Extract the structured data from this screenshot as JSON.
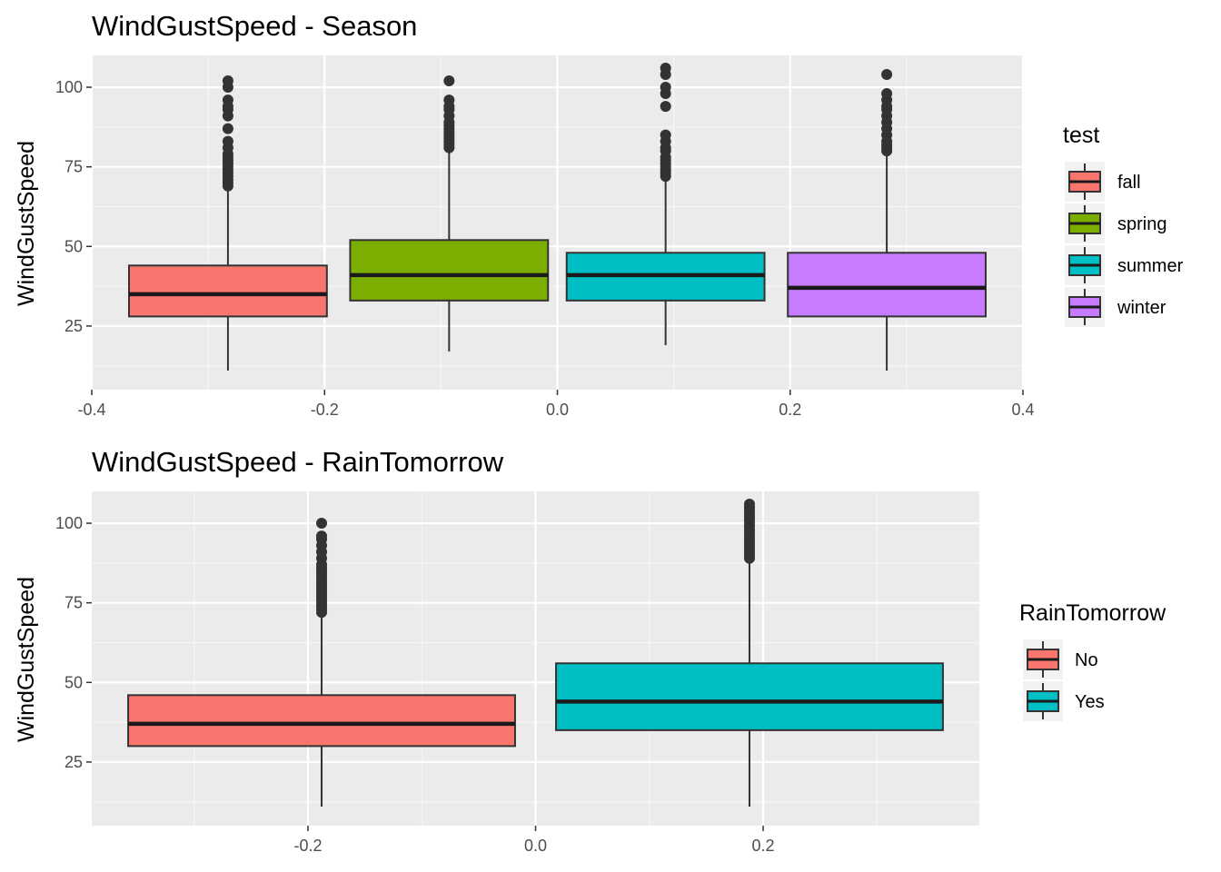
{
  "chart_data": [
    {
      "type": "boxplot",
      "title": "WindGustSpeed - Season",
      "xlabel": "",
      "ylabel": "WindGustSpeed",
      "xlim": [
        -0.4,
        0.4
      ],
      "ylim": [
        5,
        110
      ],
      "x_ticks": [
        -0.4,
        -0.2,
        0.0,
        0.2,
        0.4
      ],
      "x_tick_labels": [
        "-0.4",
        "-0.2",
        "0.0",
        "0.2",
        "0.4"
      ],
      "y_ticks": [
        25,
        50,
        75,
        100
      ],
      "y_tick_labels": [
        "25",
        "50",
        "75",
        "100"
      ],
      "legend": {
        "title": "test",
        "position": "right"
      },
      "series": [
        {
          "name": "fall",
          "color": "#F8766D",
          "x_range": [
            -0.368,
            -0.198
          ],
          "whisker_low": 11,
          "q1": 28,
          "median": 35,
          "q3": 44,
          "whisker_high": 68,
          "outliers": [
            69,
            70,
            71,
            72,
            73,
            74,
            75,
            76,
            77,
            78,
            79,
            81,
            83,
            87,
            91,
            93,
            94,
            96,
            100,
            102
          ]
        },
        {
          "name": "spring",
          "color": "#7CAE00",
          "x_range": [
            -0.178,
            -0.008
          ],
          "whisker_low": 17,
          "q1": 33,
          "median": 41,
          "q3": 52,
          "whisker_high": 80,
          "outliers": [
            81,
            82,
            83,
            84,
            85,
            86,
            87,
            88,
            89,
            91,
            93,
            94,
            96,
            102
          ]
        },
        {
          "name": "summer",
          "color": "#00BFC4",
          "x_range": [
            0.008,
            0.178
          ],
          "whisker_low": 19,
          "q1": 33,
          "median": 41,
          "q3": 48,
          "whisker_high": 71,
          "outliers": [
            72,
            73,
            74,
            75,
            76,
            77,
            78,
            80,
            81,
            83,
            85,
            94,
            98,
            100,
            104,
            106
          ]
        },
        {
          "name": "winter",
          "color": "#C77CFF",
          "x_range": [
            0.198,
            0.368
          ],
          "whisker_low": 11,
          "q1": 28,
          "median": 37,
          "q3": 48,
          "whisker_high": 79,
          "outliers": [
            80,
            81,
            82,
            83,
            85,
            87,
            89,
            91,
            93,
            94,
            96,
            98,
            104
          ]
        }
      ]
    },
    {
      "type": "boxplot",
      "title": "WindGustSpeed - RainTomorrow",
      "xlabel": "",
      "ylabel": "WindGustSpeed",
      "xlim": [
        -0.39,
        0.39
      ],
      "ylim": [
        5,
        110
      ],
      "x_ticks": [
        -0.2,
        0.0,
        0.2
      ],
      "x_tick_labels": [
        "-0.2",
        "0.0",
        "0.2"
      ],
      "y_ticks": [
        25,
        50,
        75,
        100
      ],
      "y_tick_labels": [
        "25",
        "50",
        "75",
        "100"
      ],
      "legend": {
        "title": "RainTomorrow",
        "position": "right"
      },
      "series": [
        {
          "name": "No",
          "color": "#F8766D",
          "x_range": [
            -0.358,
            -0.018
          ],
          "whisker_low": 11,
          "q1": 30,
          "median": 37,
          "q3": 46,
          "whisker_high": 71,
          "outliers": [
            72,
            73,
            74,
            75,
            76,
            77,
            78,
            79,
            80,
            81,
            82,
            83,
            84,
            85,
            86,
            87,
            89,
            91,
            93,
            95,
            96,
            100
          ]
        },
        {
          "name": "Yes",
          "color": "#00BFC4",
          "x_range": [
            0.018,
            0.358
          ],
          "whisker_low": 11,
          "q1": 35,
          "median": 44,
          "q3": 56,
          "whisker_high": 88,
          "outliers": [
            89,
            90,
            91,
            92,
            93,
            94,
            95,
            96,
            97,
            98,
            99,
            100,
            101,
            102,
            103,
            104,
            105,
            106
          ]
        }
      ]
    }
  ]
}
